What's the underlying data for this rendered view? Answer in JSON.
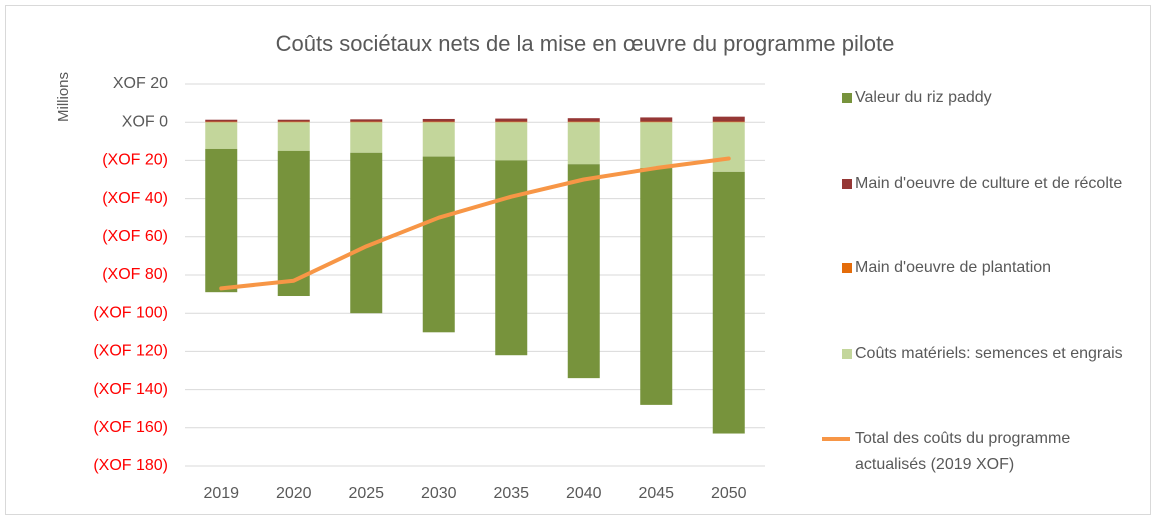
{
  "chart_data": {
    "type": "stacked_bar_line",
    "title": "Coûts sociétaux nets de la mise en œuvre du programme pilote",
    "y_axis_label": "Millions",
    "categories": [
      "2019",
      "2020",
      "2025",
      "2030",
      "2035",
      "2040",
      "2045",
      "2050"
    ],
    "series": [
      {
        "name": "Valeur du riz paddy",
        "color": "#77933c",
        "kind": "bar",
        "values": [
          -75,
          -76,
          -84,
          -92,
          -102,
          -112,
          -124,
          -137
        ]
      },
      {
        "name": "Main d'oeuvre de culture et de récolte",
        "color": "#953735",
        "kind": "bar",
        "values": [
          1,
          1,
          1.2,
          1.4,
          1.6,
          1.8,
          2.2,
          2.6
        ]
      },
      {
        "name": "Main d'oeuvre de plantation",
        "color": "#e46c0a",
        "kind": "bar",
        "values": [
          0.3,
          0.3,
          0.3,
          0.3,
          0.3,
          0.3,
          0.3,
          0.3
        ]
      },
      {
        "name": "Coûts matériels: semences et engrais",
        "color": "#c3d69b",
        "kind": "bar",
        "values": [
          -14,
          -15,
          -16,
          -18,
          -20,
          -22,
          -24,
          -26
        ]
      },
      {
        "name": "Total des coûts du programme actualisés (2019 XOF)",
        "color": "#f79646",
        "kind": "line",
        "values": [
          -87,
          -83,
          -65,
          -50,
          -39,
          -30,
          -24,
          -19
        ]
      }
    ],
    "ylim": [
      -180,
      20
    ],
    "yticks": [
      {
        "value": 20,
        "label": "XOF 20"
      },
      {
        "value": 0,
        "label": "XOF 0"
      },
      {
        "value": -20,
        "label": "(XOF 20)"
      },
      {
        "value": -40,
        "label": "(XOF 40)"
      },
      {
        "value": -60,
        "label": "(XOF 60)"
      },
      {
        "value": -80,
        "label": "(XOF 80)"
      },
      {
        "value": -100,
        "label": "(XOF 100)"
      },
      {
        "value": -120,
        "label": "(XOF 120)"
      },
      {
        "value": -140,
        "label": "(XOF 140)"
      },
      {
        "value": -160,
        "label": "(XOF 160)"
      },
      {
        "value": -180,
        "label": "(XOF 180)"
      }
    ],
    "negative_tick_color": "#ff0000",
    "grid": true,
    "legend": "right"
  }
}
